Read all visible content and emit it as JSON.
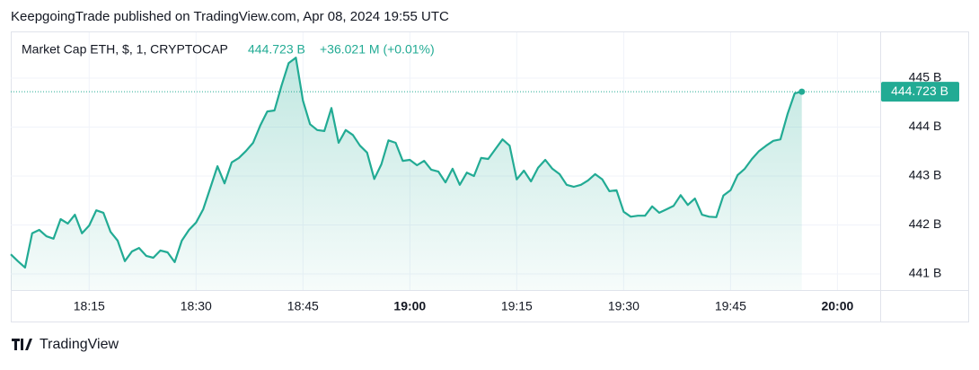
{
  "header": "KeepgoingTrade published on TradingView.com, Apr 08, 2024 19:55 UTC",
  "footer": "TradingView",
  "chart_data": {
    "type": "area",
    "title": "Market Cap ETH, $, 1, CRYPTOCAP",
    "last_label": "444.723 B",
    "change_label": "+36.021 M (+0.01%)",
    "x": [
      "18:04",
      "18:05",
      "18:06",
      "18:07",
      "18:08",
      "18:09",
      "18:10",
      "18:11",
      "18:12",
      "18:13",
      "18:14",
      "18:15",
      "18:16",
      "18:17",
      "18:18",
      "18:19",
      "18:20",
      "18:21",
      "18:22",
      "18:23",
      "18:24",
      "18:25",
      "18:26",
      "18:27",
      "18:28",
      "18:29",
      "18:30",
      "18:31",
      "18:32",
      "18:33",
      "18:34",
      "18:35",
      "18:36",
      "18:37",
      "18:38",
      "18:39",
      "18:40",
      "18:41",
      "18:42",
      "18:43",
      "18:44",
      "18:45",
      "18:46",
      "18:47",
      "18:48",
      "18:49",
      "18:50",
      "18:51",
      "18:52",
      "18:53",
      "18:54",
      "18:55",
      "18:56",
      "18:57",
      "18:58",
      "18:59",
      "19:00",
      "19:01",
      "19:02",
      "19:03",
      "19:04",
      "19:05",
      "19:06",
      "19:07",
      "19:08",
      "19:09",
      "19:10",
      "19:11",
      "19:12",
      "19:13",
      "19:14",
      "19:15",
      "19:16",
      "19:17",
      "19:18",
      "19:19",
      "19:20",
      "19:21",
      "19:22",
      "19:23",
      "19:24",
      "19:25",
      "19:26",
      "19:27",
      "19:28",
      "19:29",
      "19:30",
      "19:31",
      "19:32",
      "19:33",
      "19:34",
      "19:35",
      "19:36",
      "19:37",
      "19:38",
      "19:39",
      "19:40",
      "19:41",
      "19:42",
      "19:43",
      "19:44",
      "19:45",
      "19:46",
      "19:47",
      "19:48",
      "19:49",
      "19:50",
      "19:51",
      "19:52",
      "19:53",
      "19:54",
      "19:55"
    ],
    "series": [
      {
        "name": "Market Cap ETH",
        "color": "#22ab94",
        "values": [
          441.4,
          441.26,
          441.13,
          441.83,
          441.9,
          441.77,
          441.72,
          442.12,
          442.03,
          442.21,
          441.83,
          441.99,
          442.3,
          442.25,
          441.86,
          441.68,
          441.26,
          441.46,
          441.53,
          441.37,
          441.33,
          441.48,
          441.44,
          441.24,
          441.68,
          441.9,
          442.05,
          442.32,
          442.76,
          443.2,
          442.85,
          443.28,
          443.37,
          443.51,
          443.68,
          444.03,
          444.32,
          444.34,
          444.85,
          445.31,
          445.42,
          444.54,
          444.06,
          443.94,
          443.92,
          444.39,
          443.68,
          443.94,
          443.84,
          443.62,
          443.48,
          442.94,
          443.24,
          443.73,
          443.68,
          443.31,
          443.33,
          443.22,
          443.31,
          443.13,
          443.09,
          442.87,
          443.15,
          442.82,
          443.07,
          443.0,
          443.37,
          443.35,
          443.55,
          443.75,
          443.62,
          442.93,
          443.11,
          442.89,
          443.17,
          443.33,
          443.15,
          443.04,
          442.82,
          442.78,
          442.82,
          442.91,
          443.04,
          442.93,
          442.69,
          442.71,
          442.27,
          442.17,
          442.19,
          442.19,
          442.38,
          442.25,
          442.32,
          442.39,
          442.61,
          442.41,
          442.54,
          442.21,
          442.17,
          442.16,
          442.6,
          442.71,
          443.02,
          443.15,
          443.35,
          443.51,
          443.62,
          443.72,
          443.75,
          444.27,
          444.69,
          444.723
        ]
      }
    ],
    "xlim": [
      "18:04",
      "20:06"
    ],
    "xticks": [
      "18:15",
      "18:30",
      "18:45",
      "19:00",
      "19:15",
      "19:30",
      "19:45",
      "20:00"
    ],
    "ylim": [
      440.67,
      445.9
    ],
    "yticks": [
      {
        "value": 441,
        "label": "441 B"
      },
      {
        "value": 442,
        "label": "442 B"
      },
      {
        "value": 443,
        "label": "443 B"
      },
      {
        "value": 444,
        "label": "444 B"
      },
      {
        "value": 445,
        "label": "445 B"
      }
    ],
    "grid": true
  }
}
